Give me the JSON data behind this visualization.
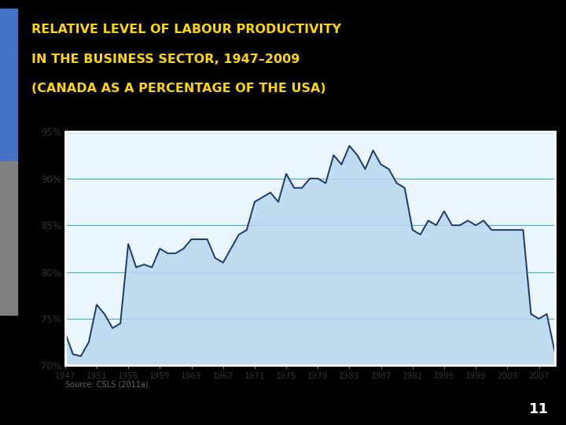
{
  "title_line1": "RELATIVE LEVEL OF LABOUR PRODUCTIVITY",
  "title_line2": "IN THE BUSINESS SECTOR, 1947–2009",
  "title_line3": "(CANADA AS A PERCENTAGE OF THE USA)",
  "title_color": "#FFD700",
  "background_color": "#000000",
  "chart_bg_color": "#EAF6FC",
  "chart_border_color": "#4BAAD3",
  "line_color": "#1A3A6B",
  "fill_color": "#B8D8EE",
  "source_text": "Source: CSLS (2011a).",
  "ylim": [
    70,
    95
  ],
  "yticks": [
    70,
    75,
    80,
    85,
    90,
    95
  ],
  "ytick_labels": [
    "70%",
    "75%",
    "80%",
    "85%",
    "90%",
    "95%"
  ],
  "xtick_labels": [
    "1947",
    "1951",
    "1955",
    "1959",
    "1963",
    "1967",
    "1971",
    "1975",
    "1979",
    "1983",
    "1987",
    "1991",
    "1995",
    "1999",
    "2003",
    "2007"
  ],
  "years": [
    1947,
    1948,
    1949,
    1950,
    1951,
    1952,
    1953,
    1954,
    1955,
    1956,
    1957,
    1958,
    1959,
    1960,
    1961,
    1962,
    1963,
    1964,
    1965,
    1966,
    1967,
    1968,
    1969,
    1970,
    1971,
    1972,
    1973,
    1974,
    1975,
    1976,
    1977,
    1978,
    1979,
    1980,
    1981,
    1982,
    1983,
    1984,
    1985,
    1986,
    1987,
    1988,
    1989,
    1990,
    1991,
    1992,
    1993,
    1994,
    1995,
    1996,
    1997,
    1998,
    1999,
    2000,
    2001,
    2002,
    2003,
    2004,
    2005,
    2006,
    2007,
    2008,
    2009
  ],
  "values": [
    73.5,
    71.2,
    71.0,
    72.5,
    76.5,
    75.5,
    74.0,
    74.5,
    83.0,
    80.5,
    80.8,
    80.5,
    82.5,
    82.0,
    82.0,
    82.5,
    83.5,
    83.5,
    83.5,
    81.5,
    81.0,
    82.5,
    84.0,
    84.5,
    87.5,
    88.0,
    88.5,
    87.5,
    90.5,
    89.0,
    89.0,
    90.0,
    90.0,
    89.5,
    92.5,
    91.5,
    93.5,
    92.5,
    91.0,
    93.0,
    91.5,
    91.0,
    89.5,
    89.0,
    84.5,
    84.0,
    85.5,
    85.0,
    86.5,
    85.0,
    85.0,
    85.5,
    85.0,
    85.5,
    84.5,
    84.5,
    84.5,
    84.5,
    84.5,
    75.5,
    75.0,
    75.5,
    71.5
  ],
  "bar_blue": "#4472C4",
  "bar_gray": "#808080",
  "page_number": "11"
}
